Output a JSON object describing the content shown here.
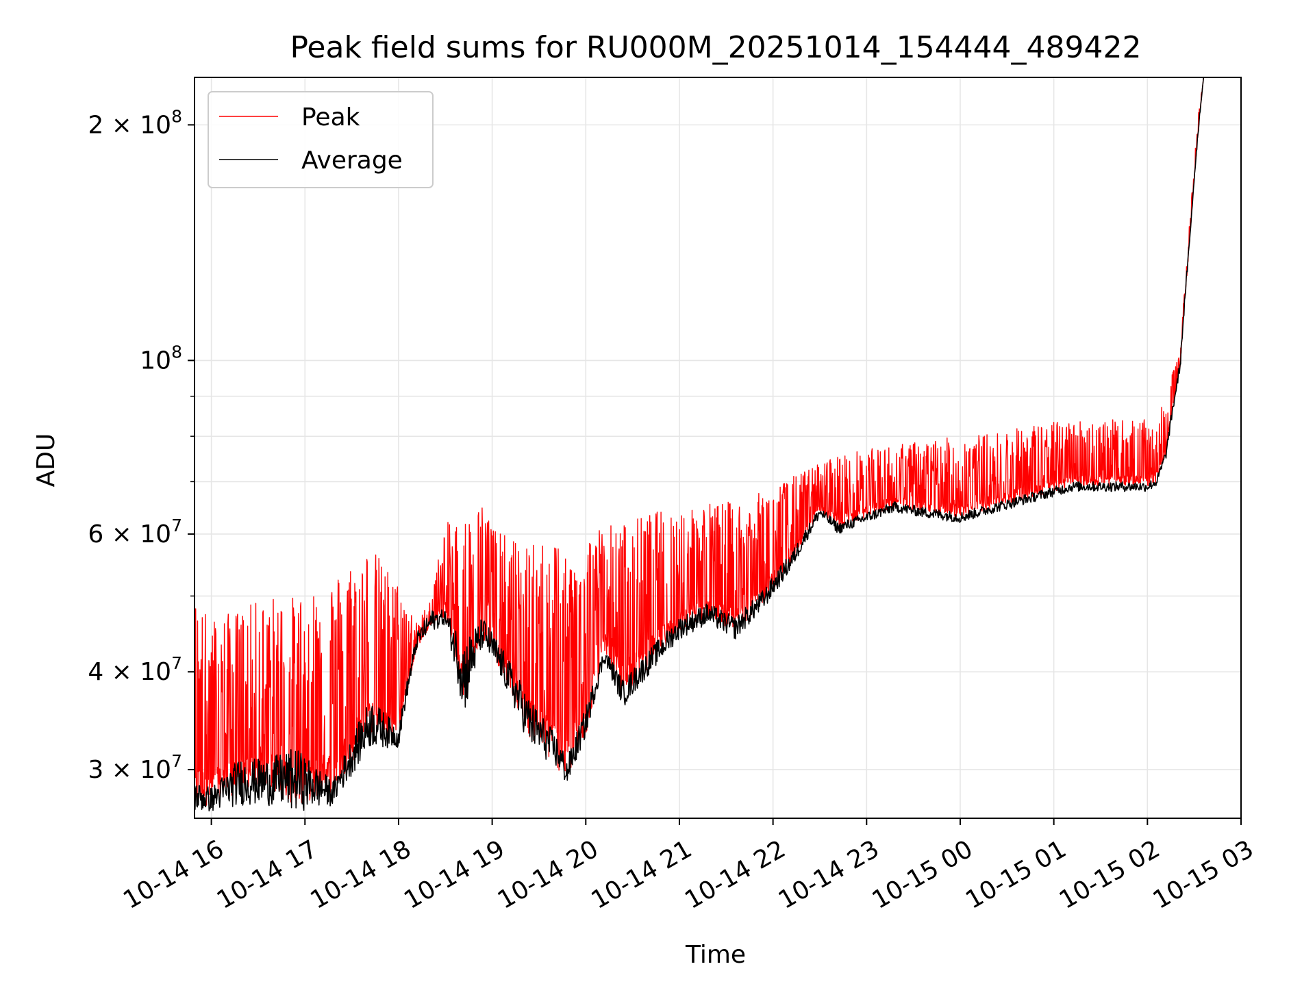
{
  "chart_data": {
    "type": "line",
    "title": "Peak field sums for RU000M_20251014_154444_489422",
    "xlabel": "Time",
    "ylabel": "ADU",
    "yscale": "log",
    "xlim_hours": [
      15.82,
      27.0
    ],
    "ylim": [
      26000000,
      230000000
    ],
    "x_ticks": [
      {
        "label": "10-14 16",
        "hour": 16
      },
      {
        "label": "10-14 17",
        "hour": 17
      },
      {
        "label": "10-14 18",
        "hour": 18
      },
      {
        "label": "10-14 19",
        "hour": 19
      },
      {
        "label": "10-14 20",
        "hour": 20
      },
      {
        "label": "10-14 21",
        "hour": 21
      },
      {
        "label": "10-14 22",
        "hour": 22
      },
      {
        "label": "10-14 23",
        "hour": 23
      },
      {
        "label": "10-15 00",
        "hour": 24
      },
      {
        "label": "10-15 01",
        "hour": 25
      },
      {
        "label": "10-15 02",
        "hour": 26
      },
      {
        "label": "10-15 03",
        "hour": 27
      }
    ],
    "y_major_ticks": [
      {
        "value": 100000000,
        "mantissa": "",
        "base": "10",
        "exp": "8"
      },
      {
        "value": 200000000,
        "mantissa": "2",
        "base": "10",
        "exp": "8"
      },
      {
        "value": 30000000,
        "mantissa": "3",
        "base": "10",
        "exp": "7"
      },
      {
        "value": 40000000,
        "mantissa": "4",
        "base": "10",
        "exp": "7"
      },
      {
        "value": 60000000,
        "mantissa": "6",
        "base": "10",
        "exp": "7"
      }
    ],
    "y_minor_ticks": [
      50000000,
      70000000,
      80000000,
      90000000
    ],
    "legend": {
      "position": "upper-left"
    },
    "grid": true,
    "series": [
      {
        "name": "Peak",
        "color": "#ff0000",
        "envelope": [
          [
            15.82,
            27000000,
            50000000
          ],
          [
            16.0,
            27000000,
            47000000
          ],
          [
            16.3,
            28000000,
            48000000
          ],
          [
            16.6,
            28500000,
            50000000
          ],
          [
            16.9,
            27000000,
            50000000
          ],
          [
            17.3,
            28000000,
            53000000
          ],
          [
            17.7,
            33000000,
            58000000
          ],
          [
            18.0,
            33000000,
            52000000
          ],
          [
            18.2,
            43000000,
            46000000
          ],
          [
            18.35,
            46000000,
            50000000
          ],
          [
            18.5,
            47000000,
            62000000
          ],
          [
            18.7,
            37000000,
            63000000
          ],
          [
            18.9,
            44000000,
            66000000
          ],
          [
            19.1,
            40000000,
            60000000
          ],
          [
            19.4,
            33000000,
            58000000
          ],
          [
            19.7,
            30000000,
            60000000
          ],
          [
            19.8,
            29000000,
            55000000
          ],
          [
            20.0,
            33000000,
            60000000
          ],
          [
            20.2,
            42000000,
            62000000
          ],
          [
            20.4,
            37000000,
            62000000
          ],
          [
            20.7,
            41000000,
            64000000
          ],
          [
            21.0,
            45000000,
            65000000
          ],
          [
            21.3,
            47000000,
            66000000
          ],
          [
            21.6,
            45000000,
            66000000
          ],
          [
            21.9,
            49000000,
            68000000
          ],
          [
            22.2,
            55000000,
            71000000
          ],
          [
            22.5,
            64000000,
            74000000
          ],
          [
            22.7,
            61000000,
            76000000
          ],
          [
            23.0,
            63000000,
            77000000
          ],
          [
            23.3,
            65000000,
            78000000
          ],
          [
            23.6,
            64000000,
            79000000
          ],
          [
            24.0,
            63000000,
            80000000
          ],
          [
            24.4,
            65000000,
            81000000
          ],
          [
            24.8,
            67000000,
            83000000
          ],
          [
            25.2,
            69000000,
            84000000
          ],
          [
            25.6,
            69000000,
            84000000
          ],
          [
            26.0,
            69000000,
            84000000
          ],
          [
            26.1,
            70000000,
            84000000
          ],
          [
            26.2,
            76000000,
            90000000
          ],
          [
            26.35,
            98000000,
            104000000
          ],
          [
            26.45,
            140000000,
            150000000
          ],
          [
            26.55,
            200000000,
            210000000
          ],
          [
            26.6,
            230000000,
            230000000
          ]
        ]
      },
      {
        "name": "Average",
        "color": "#000000",
        "envelope": [
          [
            15.82,
            26500000,
            29000000
          ],
          [
            16.0,
            26500000,
            28500000
          ],
          [
            16.3,
            27000000,
            31000000
          ],
          [
            16.6,
            27000000,
            31000000
          ],
          [
            16.9,
            26500000,
            32000000
          ],
          [
            17.3,
            27000000,
            29000000
          ],
          [
            17.7,
            32000000,
            37000000
          ],
          [
            18.0,
            32000000,
            34000000
          ],
          [
            18.2,
            43000000,
            45000000
          ],
          [
            18.35,
            45000000,
            48000000
          ],
          [
            18.5,
            46000000,
            48000000
          ],
          [
            18.7,
            35000000,
            44000000
          ],
          [
            18.9,
            43000000,
            47000000
          ],
          [
            19.1,
            39000000,
            43000000
          ],
          [
            19.4,
            32000000,
            37000000
          ],
          [
            19.7,
            30000000,
            33000000
          ],
          [
            19.8,
            28500000,
            31000000
          ],
          [
            20.0,
            33000000,
            36000000
          ],
          [
            20.2,
            41000000,
            43000000
          ],
          [
            20.4,
            36000000,
            39000000
          ],
          [
            20.7,
            40000000,
            43000000
          ],
          [
            21.0,
            44000000,
            47000000
          ],
          [
            21.3,
            46000000,
            49000000
          ],
          [
            21.6,
            44000000,
            47000000
          ],
          [
            21.9,
            48000000,
            51000000
          ],
          [
            22.2,
            54000000,
            57000000
          ],
          [
            22.5,
            63000000,
            65000000
          ],
          [
            22.7,
            60000000,
            62000000
          ],
          [
            23.0,
            62000000,
            64000000
          ],
          [
            23.3,
            64000000,
            66000000
          ],
          [
            23.6,
            63000000,
            65000000
          ],
          [
            24.0,
            62000000,
            64000000
          ],
          [
            24.4,
            64000000,
            66000000
          ],
          [
            24.8,
            66000000,
            68000000
          ],
          [
            25.2,
            68000000,
            70000000
          ],
          [
            25.6,
            68000000,
            70000000
          ],
          [
            26.0,
            68000000,
            70000000
          ],
          [
            26.1,
            69000000,
            71000000
          ],
          [
            26.2,
            75000000,
            77000000
          ],
          [
            26.35,
            97000000,
            100000000
          ],
          [
            26.45,
            139000000,
            143000000
          ],
          [
            26.55,
            199000000,
            203000000
          ],
          [
            26.6,
            230000000,
            230000000
          ]
        ]
      }
    ]
  }
}
